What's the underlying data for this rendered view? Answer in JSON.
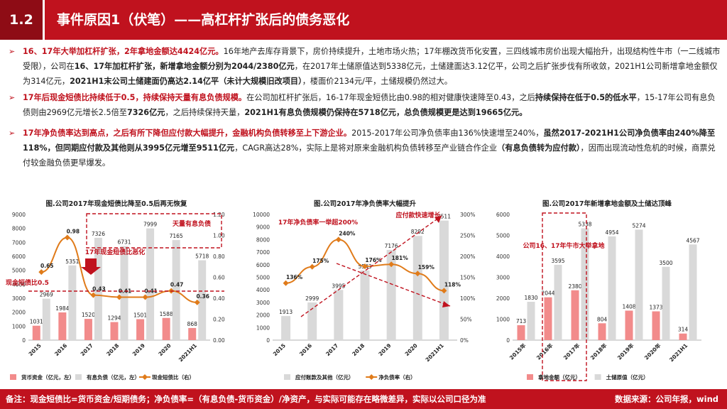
{
  "header": {
    "section_number": "1.2",
    "title": "事件原因1（伏笔）——高杠杆扩张后的债务恶化"
  },
  "bullets": [
    {
      "segments": [
        {
          "t": "16、17年大举加杠杆扩张，2年拿地金额达4424亿元。",
          "s": "r"
        },
        {
          "t": "16年地产去库存背景下，房价持续提升，土地市场火热；17年棚改货币化安置，三四线城市房价出现大幅抬升，出现结构性牛市（一二线城市受限），公司在",
          "s": "n"
        },
        {
          "t": "16、17年加杠杆扩张，新增拿地金额分别为2044/2380亿元",
          "s": "b"
        },
        {
          "t": "，在2017年土储原值达到5338亿元，土储建面达3.12亿平，公司之后扩张步伐有所收敛，2021H1公司新增拿地金额仅为314亿元，",
          "s": "n"
        },
        {
          "t": "2021H1末公司土储建面仍高达2.14亿平（未计大规模旧改项目）",
          "s": "b"
        },
        {
          "t": "，楼面价2134元/平，土储规模仍然过大。",
          "s": "n"
        }
      ]
    },
    {
      "segments": [
        {
          "t": "17年后现金短债比持续低于0.5，持续保持天量有息负债规模。",
          "s": "r"
        },
        {
          "t": "在公司加杠杆扩张后，16-17年现金短债比由0.98的相对健康快速降至0.43，之后",
          "s": "n"
        },
        {
          "t": "持续保持在低于0.5的低水平",
          "s": "b"
        },
        {
          "t": "，15-17年公司有息负债则由2969亿元增长2.5倍至",
          "s": "n"
        },
        {
          "t": "7326亿元",
          "s": "b"
        },
        {
          "t": "，之后持续保持天量，",
          "s": "n"
        },
        {
          "t": "2021H1有息负债规模仍保持在5718亿元，总负债规模更是达到19665亿元。",
          "s": "b"
        }
      ]
    },
    {
      "segments": [
        {
          "t": "17年净负债率达到高点，之后有所下降但应付款大幅提升，金融机构负债转移至上下游企业。",
          "s": "r"
        },
        {
          "t": "2015-2017年公司净负债率由136%快速增至240%，",
          "s": "n"
        },
        {
          "t": "虽然2017-2021H1公司净负债率由240%降至118%，但同期应付款及其他则从3995亿元增至9511亿元",
          "s": "b"
        },
        {
          "t": "，CAGR高达28%，实际上是将对原来金融机构负债转移至产业链合作企业",
          "s": "n"
        },
        {
          "t": "（有息负债转为应付款）",
          "s": "b"
        },
        {
          "t": "，因而出现流动性危机的时候，商票兑付较金融负债更早爆发。",
          "s": "n"
        }
      ]
    }
  ],
  "chart_data": [
    {
      "type": "bar+line",
      "title": "图.公司2017年现金短债比降至0.5后再无恢复",
      "categories": [
        "2015",
        "2016",
        "2017",
        "2018",
        "2019",
        "2020",
        "2021H1"
      ],
      "series": [
        {
          "name": "货币资金（亿元，左）",
          "values": [
            1031,
            1984,
            1520,
            1294,
            1501,
            1588,
            868
          ],
          "color": "#f28b8b",
          "kind": "bar",
          "axis": "left"
        },
        {
          "name": "有息负债（亿元，左）",
          "values": [
            2969,
            5351,
            7326,
            6731,
            7999,
            7165,
            5718
          ],
          "color": "#d9d9d9",
          "kind": "bar",
          "axis": "left"
        },
        {
          "name": "现金短债比（右）",
          "values": [
            0.65,
            0.98,
            0.43,
            0.41,
            0.41,
            0.47,
            0.36
          ],
          "color": "#e07b1a",
          "kind": "line",
          "axis": "right"
        }
      ],
      "ylim_left": [
        0,
        9000
      ],
      "yticks_left": [
        0,
        1000,
        2000,
        3000,
        4000,
        5000,
        6000,
        7000,
        8000,
        9000
      ],
      "ylim_right": [
        0,
        1.2
      ],
      "yticks_right": [
        "0.00",
        "0.20",
        "0.40",
        "0.60",
        "0.80",
        "1.00",
        "1.20"
      ],
      "annotations": [
        "天量有息负债",
        "17年现金短债比恶化",
        "现金短债比0.5"
      ]
    },
    {
      "type": "bar+line",
      "title": "图.公司2017年净负债率大幅提升",
      "categories": [
        "2015",
        "2016",
        "2017",
        "2018",
        "2019",
        "2020",
        "2021H1"
      ],
      "series": [
        {
          "name": "应付账款及其他（亿元）",
          "values": [
            1913,
            2999,
            3995,
            5543,
            7176,
            8292,
            9511
          ],
          "color": "#d9d9d9",
          "kind": "bar",
          "axis": "left"
        },
        {
          "name": "净负债率（右）",
          "values": [
            136,
            175,
            240,
            176,
            181,
            159,
            118
          ],
          "color": "#e07b1a",
          "kind": "line",
          "axis": "right"
        }
      ],
      "ylim_left": [
        0,
        10000
      ],
      "yticks_left": [
        0,
        1000,
        2000,
        3000,
        4000,
        5000,
        6000,
        7000,
        8000,
        9000,
        10000
      ],
      "ylim_right": [
        0,
        300
      ],
      "yticks_right": [
        "0%",
        "50%",
        "100%",
        "150%",
        "200%",
        "250%",
        "300%"
      ],
      "annotations": [
        "17年净负债率一举超200%",
        "应付款快速增长"
      ]
    },
    {
      "type": "bar",
      "title": "图.公司2017年新增拿地金额及土储达顶峰",
      "categories": [
        "2015年",
        "2016年",
        "2017年",
        "2018年",
        "2019年",
        "2020年",
        "2021H1"
      ],
      "series": [
        {
          "name": "拿地金额（亿元）",
          "values": [
            713,
            2044,
            2380,
            804,
            1408,
            1373,
            314
          ],
          "color": "#f28b8b",
          "kind": "bar"
        },
        {
          "name": "土储原值（亿元）",
          "values": [
            1830,
            3595,
            5338,
            4954,
            5274,
            3500,
            4567
          ],
          "color": "#d9d9d9",
          "kind": "bar"
        }
      ],
      "ylim": [
        0,
        6000
      ],
      "yticks": [
        0,
        1000,
        2000,
        3000,
        4000,
        5000,
        6000
      ],
      "annotations": [
        "公司16、17年牛市大举拿地"
      ]
    }
  ],
  "footer": {
    "note": "备注：现金短债比=货币资金/短期债务；净负债率=（有息负债-货币资金）/净资产，与实际可能存在略微差异，实际以公司口径为准",
    "source": "数据来源：公司年报，wind"
  }
}
